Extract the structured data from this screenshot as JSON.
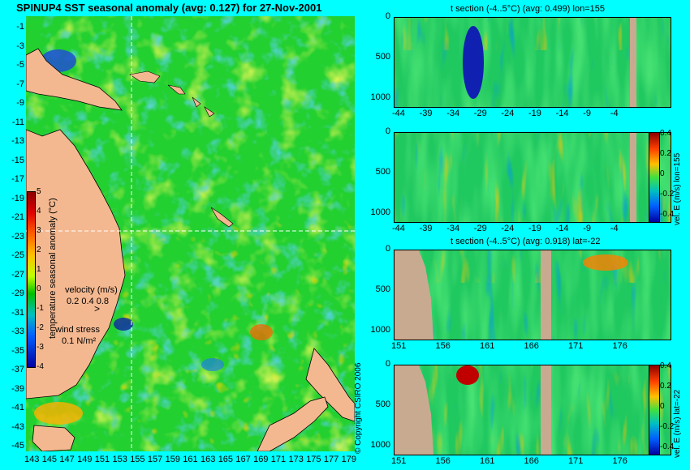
{
  "map": {
    "title": "SPINUP4 SST seasonal anomaly  (avg: 0.127) for 27-Nov-2001",
    "lat_ticks": [
      "-1",
      "-3",
      "-5",
      "-7",
      "-9",
      "-11",
      "-13",
      "-15",
      "-17",
      "-19",
      "-21",
      "-23",
      "-25",
      "-27",
      "-29",
      "-31",
      "-33",
      "-35",
      "-37",
      "-39",
      "-41",
      "-43",
      "-45"
    ],
    "lon_ticks": [
      "143",
      "145",
      "147",
      "149",
      "151",
      "153",
      "155",
      "157",
      "159",
      "161",
      "163",
      "165",
      "167",
      "169",
      "171",
      "173",
      "175",
      "177",
      "179"
    ],
    "colorbar": {
      "label": "temperature seasonal anomaly (°C)",
      "ticks": [
        "5",
        "4",
        "3",
        "2",
        "1",
        "0",
        "-1",
        "-2",
        "-3",
        "-4"
      ],
      "range": [
        -4,
        5
      ]
    },
    "velocity_legend": {
      "label": "velocity (m/s)",
      "values": "0.2 0.4 0.8"
    },
    "wind_legend": {
      "label": "wind stress",
      "value": "0.1 N/m²"
    },
    "copyright": "© Copyright CSIRO 2006",
    "crosshair": {
      "lon": 155,
      "lat": -22
    }
  },
  "panels": [
    {
      "title": "t section (-4..5°C) (avg: 0.499) lon=155",
      "x_ticks": [
        "-44",
        "-39",
        "-34",
        "-29",
        "-24",
        "-19",
        "-14",
        "-9",
        "-4"
      ],
      "y_ticks": [
        "0",
        "500",
        "1000"
      ],
      "colorbar": false
    },
    {
      "title": "",
      "x_ticks": [
        "-44",
        "-39",
        "-34",
        "-29",
        "-24",
        "-19",
        "-14",
        "-9",
        "-4"
      ],
      "y_ticks": [
        "0",
        "500",
        "1000"
      ],
      "colorbar": true,
      "cbar_label": "vel. E (m/s) lon=155",
      "cbar_ticks": [
        "0.4",
        "0.2",
        "0",
        "-0.2",
        "-0.4"
      ]
    },
    {
      "title": "t section (-4..5°C) (avg: 0.918) lat=-22",
      "x_ticks": [
        "151",
        "156",
        "161",
        "166",
        "171",
        "176"
      ],
      "y_ticks": [
        "0",
        "500",
        "1000"
      ],
      "colorbar": false
    },
    {
      "title": "",
      "x_ticks": [
        "151",
        "156",
        "161",
        "166",
        "171",
        "176"
      ],
      "y_ticks": [
        "0",
        "500",
        "1000"
      ],
      "colorbar": true,
      "cbar_label": "vel. E (m/s) lat=-22",
      "cbar_ticks": [
        "0.4",
        "0.2",
        "0",
        "-0.2",
        "-0.4"
      ]
    }
  ],
  "chart_data": [
    {
      "type": "heatmap",
      "title": "SPINUP4 SST seasonal anomaly  (avg: 0.127) for 27-Nov-2001",
      "xlabel": "",
      "ylabel": "",
      "xlim": [
        143,
        180
      ],
      "ylim": [
        -45,
        0
      ],
      "colorbar_range": [
        -4,
        5
      ],
      "average": 0.127,
      "date": "27-Nov-2001"
    },
    {
      "type": "heatmap",
      "title": "t section (-4..5°C) (avg: 0.499) lon=155",
      "xlim": [
        -45,
        0
      ],
      "ylim": [
        1000,
        0
      ],
      "average": 0.499,
      "lon": 155
    },
    {
      "type": "heatmap",
      "title": "",
      "cbar_label": "vel. E (m/s) lon=155",
      "xlim": [
        -45,
        0
      ],
      "ylim": [
        1000,
        0
      ],
      "colorbar_range": [
        -0.4,
        0.4
      ]
    },
    {
      "type": "heatmap",
      "title": "t section (-4..5°C) (avg: 0.918) lat=-22",
      "xlim": [
        150,
        180
      ],
      "ylim": [
        1000,
        0
      ],
      "average": 0.918,
      "lat": -22
    },
    {
      "type": "heatmap",
      "title": "",
      "cbar_label": "vel. E (m/s) lat=-22",
      "xlim": [
        150,
        180
      ],
      "ylim": [
        1000,
        0
      ],
      "colorbar_range": [
        -0.4,
        0.4
      ]
    }
  ]
}
